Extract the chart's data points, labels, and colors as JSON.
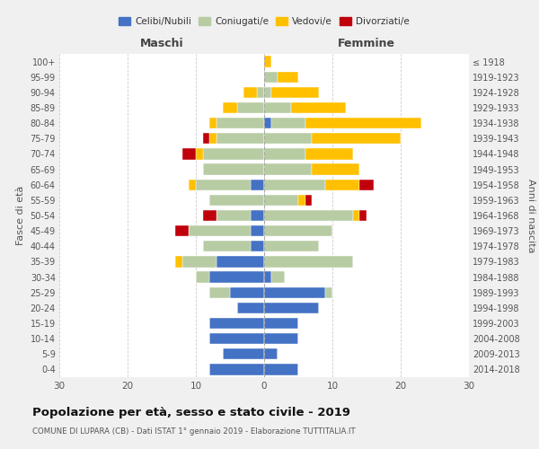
{
  "age_groups": [
    "0-4",
    "5-9",
    "10-14",
    "15-19",
    "20-24",
    "25-29",
    "30-34",
    "35-39",
    "40-44",
    "45-49",
    "50-54",
    "55-59",
    "60-64",
    "65-69",
    "70-74",
    "75-79",
    "80-84",
    "85-89",
    "90-94",
    "95-99",
    "100+"
  ],
  "birth_years": [
    "2014-2018",
    "2009-2013",
    "2004-2008",
    "1999-2003",
    "1994-1998",
    "1989-1993",
    "1984-1988",
    "1979-1983",
    "1974-1978",
    "1969-1973",
    "1964-1968",
    "1959-1963",
    "1954-1958",
    "1949-1953",
    "1944-1948",
    "1939-1943",
    "1934-1938",
    "1929-1933",
    "1924-1928",
    "1919-1923",
    "≤ 1918"
  ],
  "maschi": {
    "celibi": [
      8,
      6,
      8,
      8,
      4,
      5,
      8,
      7,
      2,
      2,
      2,
      0,
      2,
      0,
      0,
      0,
      0,
      0,
      0,
      0,
      0
    ],
    "coniugati": [
      0,
      0,
      0,
      0,
      0,
      3,
      2,
      5,
      7,
      9,
      5,
      8,
      8,
      9,
      9,
      7,
      7,
      4,
      1,
      0,
      0
    ],
    "vedovi": [
      0,
      0,
      0,
      0,
      0,
      0,
      0,
      1,
      0,
      0,
      0,
      0,
      1,
      0,
      1,
      1,
      1,
      2,
      2,
      0,
      0
    ],
    "divorziati": [
      0,
      0,
      0,
      0,
      0,
      0,
      0,
      0,
      0,
      2,
      2,
      0,
      0,
      0,
      2,
      1,
      0,
      0,
      0,
      0,
      0
    ]
  },
  "femmine": {
    "nubili": [
      5,
      2,
      5,
      5,
      8,
      9,
      1,
      0,
      0,
      0,
      0,
      0,
      0,
      0,
      0,
      0,
      1,
      0,
      0,
      0,
      0
    ],
    "coniugate": [
      0,
      0,
      0,
      0,
      0,
      1,
      2,
      13,
      8,
      10,
      13,
      5,
      9,
      7,
      6,
      7,
      5,
      4,
      1,
      2,
      0
    ],
    "vedove": [
      0,
      0,
      0,
      0,
      0,
      0,
      0,
      0,
      0,
      0,
      1,
      1,
      5,
      7,
      7,
      13,
      17,
      8,
      7,
      3,
      1
    ],
    "divorziate": [
      0,
      0,
      0,
      0,
      0,
      0,
      0,
      0,
      0,
      0,
      1,
      1,
      2,
      0,
      0,
      0,
      0,
      0,
      0,
      0,
      0
    ]
  },
  "colors": {
    "celibi": "#4472c4",
    "coniugati": "#b8cca4",
    "vedovi": "#ffc000",
    "divorziati": "#c0000b"
  },
  "xlim": 30,
  "title": "Popolazione per età, sesso e stato civile - 2019",
  "subtitle": "COMUNE DI LUPARA (CB) - Dati ISTAT 1° gennaio 2019 - Elaborazione TUTTITALIA.IT",
  "ylabel_left": "Fasce di età",
  "ylabel_right": "Anni di nascita",
  "xlabel_maschi": "Maschi",
  "xlabel_femmine": "Femmine",
  "legend_labels": [
    "Celibi/Nubili",
    "Coniugati/e",
    "Vedovi/e",
    "Divorziati/e"
  ],
  "bg_color": "#f0f0f0",
  "plot_bg_color": "#ffffff"
}
